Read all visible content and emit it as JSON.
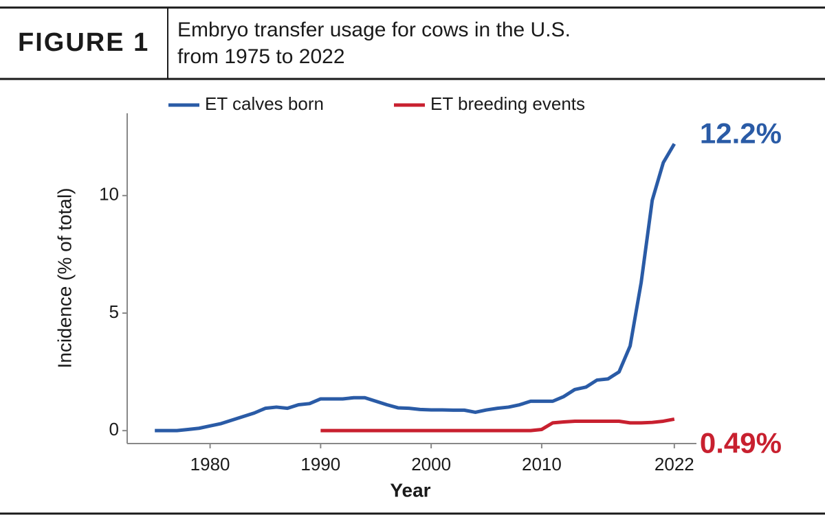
{
  "chart_data": {
    "type": "line",
    "figure_label": "FIGURE 1",
    "title_lines": [
      "Embryo transfer usage for cows in the U.S.",
      "from 1975 to 2022"
    ],
    "x_label": "Year",
    "y_label": "Incidence (% of total)",
    "x": [
      1975,
      1976,
      1977,
      1978,
      1979,
      1980,
      1981,
      1982,
      1983,
      1984,
      1985,
      1986,
      1987,
      1988,
      1989,
      1990,
      1991,
      1992,
      1993,
      1994,
      1995,
      1996,
      1997,
      1998,
      1999,
      2000,
      2001,
      2002,
      2003,
      2004,
      2005,
      2006,
      2007,
      2008,
      2009,
      2010,
      2011,
      2012,
      2013,
      2014,
      2015,
      2016,
      2017,
      2018,
      2019,
      2020,
      2021,
      2022
    ],
    "series": [
      {
        "name": "ET calves born",
        "color": "#2a5ba6",
        "values": [
          0,
          0,
          0,
          0.05,
          0.1,
          0.2,
          0.3,
          0.45,
          0.6,
          0.75,
          0.95,
          1.0,
          0.95,
          1.1,
          1.15,
          1.35,
          1.35,
          1.35,
          1.4,
          1.4,
          1.25,
          1.1,
          0.97,
          0.95,
          0.9,
          0.88,
          0.88,
          0.87,
          0.87,
          0.78,
          0.88,
          0.95,
          1.0,
          1.1,
          1.25,
          1.25,
          1.25,
          1.45,
          1.75,
          1.85,
          2.15,
          2.2,
          2.5,
          3.6,
          6.3,
          9.8,
          11.4,
          12.2
        ],
        "value_labels": [
          null,
          null,
          null,
          null,
          null,
          null,
          null,
          null,
          null,
          null,
          null,
          null,
          null,
          null,
          null,
          null,
          null,
          null,
          null,
          null,
          null,
          null,
          null,
          null,
          null,
          null,
          null,
          null,
          null,
          null,
          null,
          null,
          null,
          null,
          null,
          null,
          null,
          null,
          null,
          null,
          null,
          null,
          null,
          null,
          null,
          null,
          null,
          "12.2%"
        ]
      },
      {
        "name": "ET breeding events",
        "color": "#c8202f",
        "values": [
          null,
          null,
          null,
          null,
          null,
          null,
          null,
          null,
          null,
          null,
          null,
          null,
          null,
          null,
          null,
          0,
          0,
          0,
          0,
          0,
          0,
          0,
          0,
          0,
          0,
          0,
          0,
          0,
          0,
          0,
          0,
          0,
          0,
          0,
          0,
          0.05,
          0.33,
          0.37,
          0.4,
          0.4,
          0.4,
          0.4,
          0.4,
          0.33,
          0.33,
          0.35,
          0.4,
          0.49
        ],
        "value_labels": [
          null,
          null,
          null,
          null,
          null,
          null,
          null,
          null,
          null,
          null,
          null,
          null,
          null,
          null,
          null,
          null,
          null,
          null,
          null,
          null,
          null,
          null,
          null,
          null,
          null,
          null,
          null,
          null,
          null,
          null,
          null,
          null,
          null,
          null,
          null,
          null,
          null,
          null,
          null,
          null,
          null,
          null,
          null,
          null,
          null,
          null,
          null,
          "0.49%"
        ]
      }
    ],
    "xlim": [
      1972.5,
      2024
    ],
    "xticks": [
      1980,
      1990,
      2000,
      2010,
      2022
    ],
    "ylim": [
      -0.55,
      13.5
    ],
    "yticks": [
      0,
      5,
      10
    ]
  }
}
